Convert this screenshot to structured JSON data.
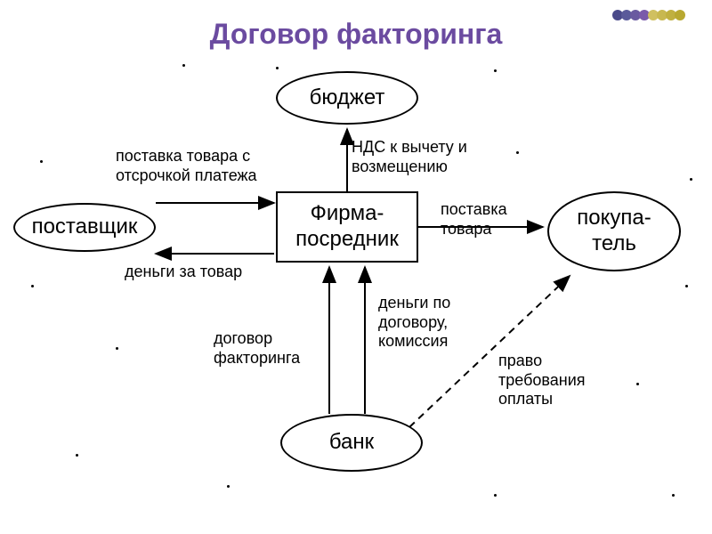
{
  "title": {
    "text": "Договор факторинга",
    "color": "#6b4ba0",
    "fontsize": 32
  },
  "decoration": {
    "colors": [
      "#4a4a8a",
      "#5a5a9a",
      "#6a5aa0",
      "#7a5aaa",
      "#d0c060",
      "#c8b850",
      "#c0b040",
      "#b8a830"
    ]
  },
  "nodes": {
    "budget": {
      "label": "бюджет",
      "fontsize": 24
    },
    "supplier": {
      "label": "поставщик",
      "fontsize": 24
    },
    "intermediary": {
      "line1": "Фирма-",
      "line2": "посредник",
      "fontsize": 24
    },
    "buyer": {
      "line1": "покупа-",
      "line2": "тель",
      "fontsize": 24
    },
    "bank": {
      "label": "банк",
      "fontsize": 24
    }
  },
  "edges": {
    "delivery_delay": {
      "line1": "поставка товара с",
      "line2": "отсрочкой платежа"
    },
    "money_for_goods": {
      "label": "деньги за товар"
    },
    "vat": {
      "line1": "НДС к вычету и",
      "line2": "возмещению"
    },
    "delivery": {
      "line1": "поставка",
      "line2": "товара"
    },
    "factoring_contract": {
      "line1": "договор",
      "line2": "факторинга"
    },
    "money_commission": {
      "line1": "деньги по",
      "line2": "договору,",
      "line3": "комиссия"
    },
    "payment_right": {
      "line1": "право",
      "line2": "требования",
      "line3": "оплаты"
    }
  },
  "style": {
    "node_stroke": "#000000",
    "arrow_stroke": "#000000",
    "background": "#ffffff",
    "label_fontsize": 18
  }
}
